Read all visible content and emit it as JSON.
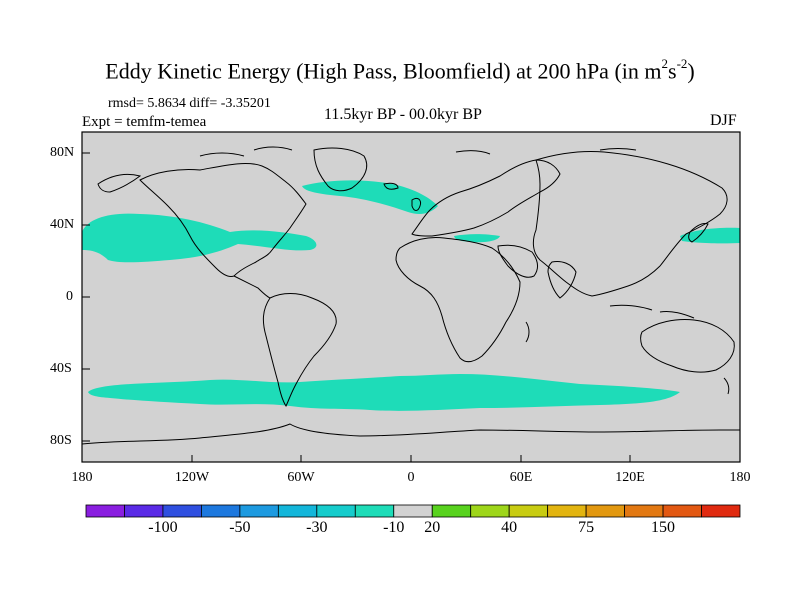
{
  "title": {
    "main": "Eddy Kinetic Energy (High Pass, Bloomfield) at 200 hPa (in m",
    "sup1": "2",
    "mid": "s",
    "sup2": "-2",
    "close": ")"
  },
  "stats": "rmsd= 5.8634 diff= -3.35201",
  "expt": "Expt = temfm-temea",
  "center_label": "11.5kyr BP - 00.0kyr BP",
  "season": "DJF",
  "axes": {
    "lat_labels": [
      "80N",
      "40N",
      "0",
      "40S",
      "80S"
    ],
    "lon_labels": [
      "180",
      "120W",
      "60W",
      "0",
      "60E",
      "120E",
      "180"
    ]
  },
  "colorbar": {
    "colors": [
      "#8a1ee0",
      "#5a2ae6",
      "#2f4fe0",
      "#1d78de",
      "#1d9ae0",
      "#13b6da",
      "#16cccc",
      "#1edcb8",
      "#d2d2d2",
      "#58d21e",
      "#9ed61a",
      "#c8cc12",
      "#e2b410",
      "#e29810",
      "#e27812",
      "#e25812",
      "#e02a10"
    ],
    "labels": [
      "-100",
      "-50",
      "-30",
      "-10",
      "20",
      "40",
      "75",
      "150"
    ],
    "label_boundaries": [
      2,
      4,
      6,
      8,
      9,
      11,
      13,
      15
    ]
  },
  "map": {
    "ocean_color": "#d2d2d2",
    "anomaly_color": "#1edcb8",
    "coast_color": "#000000"
  }
}
